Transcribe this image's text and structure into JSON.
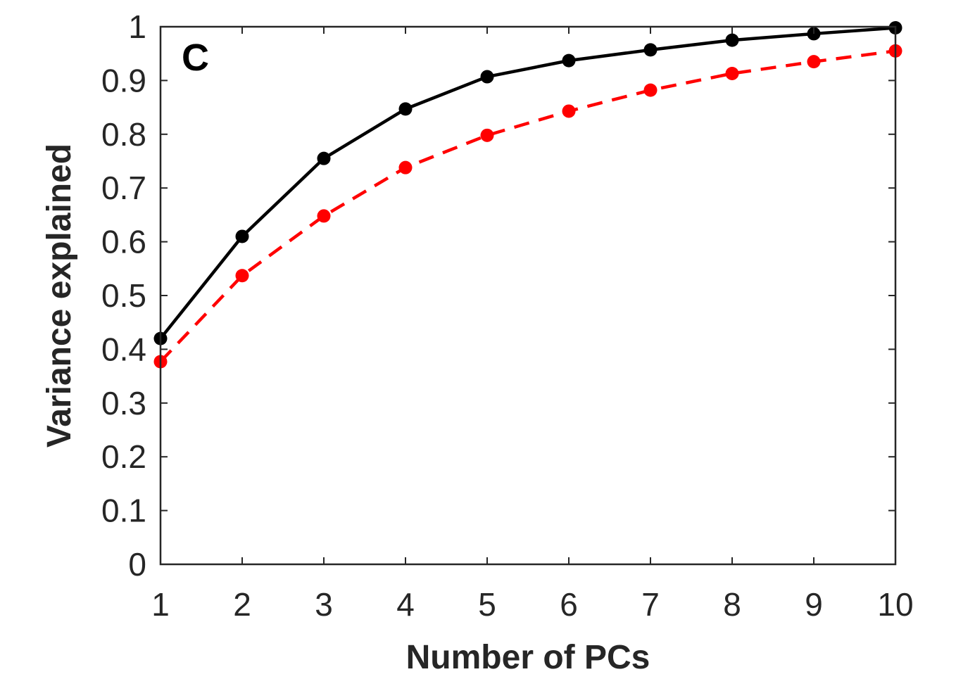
{
  "panel_label": "C",
  "chart_data": {
    "type": "line",
    "xlabel": "Number of PCs",
    "ylabel": "Variance explained",
    "x": [
      1,
      2,
      3,
      4,
      5,
      6,
      7,
      8,
      9,
      10
    ],
    "xlim": [
      1,
      10
    ],
    "ylim": [
      0,
      1
    ],
    "xticks": [
      "1",
      "2",
      "3",
      "4",
      "5",
      "6",
      "7",
      "8",
      "9",
      "10"
    ],
    "yticks": [
      "0",
      "0.1",
      "0.2",
      "0.3",
      "0.4",
      "0.5",
      "0.6",
      "0.7",
      "0.8",
      "0.9",
      "1"
    ],
    "grid": false,
    "series": [
      {
        "color": "#000000",
        "line_style": "solid",
        "marker": "circle",
        "values": [
          0.42,
          0.61,
          0.755,
          0.847,
          0.907,
          0.937,
          0.957,
          0.975,
          0.987,
          0.998
        ]
      },
      {
        "color": "#ff0000",
        "line_style": "dashed",
        "marker": "circle",
        "values": [
          0.377,
          0.537,
          0.648,
          0.738,
          0.798,
          0.843,
          0.882,
          0.913,
          0.935,
          0.955
        ]
      }
    ]
  }
}
